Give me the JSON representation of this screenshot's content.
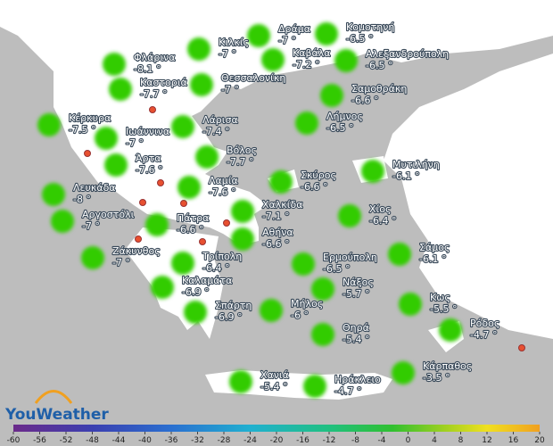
{
  "logo": "YouWeather",
  "cities": [
    {
      "name": "Φλάρινα",
      "temp": "-8.1 °"
    },
    {
      "name": "Κιλκίς",
      "temp": "-7 °"
    },
    {
      "name": "Δράμα",
      "temp": "-7 °"
    },
    {
      "name": "Κομοτηνή",
      "temp": "-6.5 °"
    },
    {
      "name": "Καβάλα",
      "temp": "-7.2 °"
    },
    {
      "name": "Αλεξανδρούπολη",
      "temp": "-6.5 °"
    },
    {
      "name": "Καστοριά",
      "temp": "-7.7 °"
    },
    {
      "name": "Θεσσαλονίκη",
      "temp": "-7 °"
    },
    {
      "name": "Σαμοθράκη",
      "temp": "-6.6 °"
    },
    {
      "name": "Κέρκυρα",
      "temp": "-7.5 °"
    },
    {
      "name": "Ιωάννινα",
      "temp": "-7 °"
    },
    {
      "name": "Λάρισα",
      "temp": "-7.4 °"
    },
    {
      "name": "Λήμνος",
      "temp": "-6.5 °"
    },
    {
      "name": "Άρτα",
      "temp": "-7.6 °"
    },
    {
      "name": "Βόλος",
      "temp": "-7.7 °"
    },
    {
      "name": "Μυτιλήνη",
      "temp": "-6.1 °"
    },
    {
      "name": "Σκύρος",
      "temp": "-6.6 °"
    },
    {
      "name": "Λευκάδα",
      "temp": "-8 °"
    },
    {
      "name": "Λαμία",
      "temp": "-7.6 °"
    },
    {
      "name": "Χαλκίδα",
      "temp": "-7.1 °"
    },
    {
      "name": "Χίος",
      "temp": "-6.4 °"
    },
    {
      "name": "Αργοστόλι",
      "temp": "-7 °"
    },
    {
      "name": "Πάτρα",
      "temp": "-6.6 °"
    },
    {
      "name": "Αθήνα",
      "temp": "-6.6 °"
    },
    {
      "name": "Ζάκυνθος",
      "temp": "-7 °"
    },
    {
      "name": "Τρίπολη",
      "temp": "-6.4 °"
    },
    {
      "name": "Ερμούπολη",
      "temp": "-6.5 °"
    },
    {
      "name": "Σάμος",
      "temp": "-6.1 °"
    },
    {
      "name": "Καλαμάτα",
      "temp": "-6.9 °"
    },
    {
      "name": "Νάξος",
      "temp": "-5.7 °"
    },
    {
      "name": "Σπάρτη",
      "temp": "-6.9 °"
    },
    {
      "name": "Μήλος",
      "temp": "-6 °"
    },
    {
      "name": "Κως",
      "temp": "-5.5 °"
    },
    {
      "name": "Θηρά",
      "temp": "-5.4 °"
    },
    {
      "name": "Ρόδος",
      "temp": "-4.7 °"
    },
    {
      "name": "Κάρπαθος",
      "temp": "-3.5 °"
    },
    {
      "name": "Χανιά",
      "temp": "-5.4 °"
    },
    {
      "name": "Ηράκλειο",
      "temp": "-4.7 °"
    }
  ],
  "scale_ticks": [
    -60,
    -56,
    -52,
    -48,
    -44,
    -40,
    -36,
    -32,
    -28,
    -24,
    -20,
    -16,
    -12,
    -8,
    -4,
    0,
    4,
    8,
    12,
    16,
    20
  ]
}
